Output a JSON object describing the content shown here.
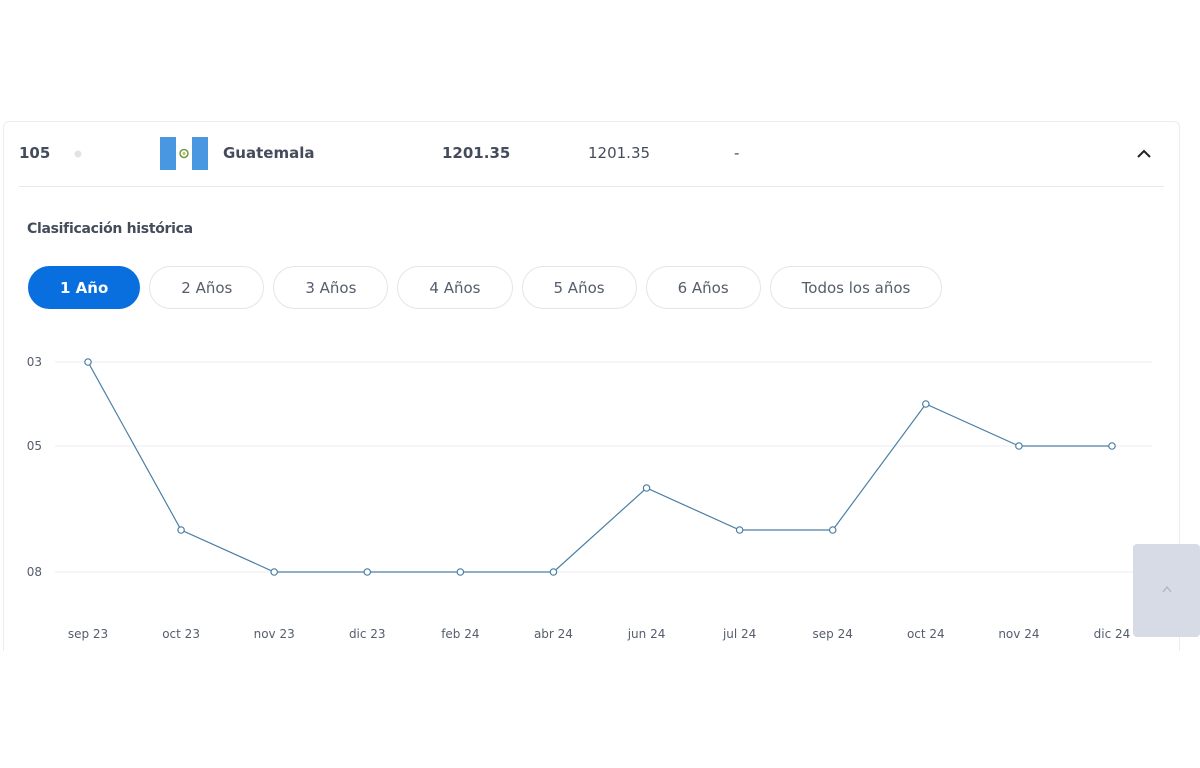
{
  "row": {
    "rank": "105",
    "country": "Guatemala",
    "points": "1201.35",
    "previous_points": "1201.35",
    "change": "-"
  },
  "section_title": "Clasificación histórica",
  "range_buttons": {
    "labels": [
      "1 Año",
      "2 Años",
      "3 Años",
      "4 Años",
      "5 Años",
      "6 Años",
      "Todos los años"
    ],
    "active": 0
  },
  "chart_data": {
    "type": "line",
    "categories": [
      "sep 23",
      "oct 23",
      "nov 23",
      "dic 23",
      "feb 24",
      "abr 24",
      "jun 24",
      "jul 24",
      "sep 24",
      "oct 24",
      "nov 24",
      "dic 24"
    ],
    "values": [
      3,
      7,
      8,
      8,
      8,
      8,
      6,
      7,
      7,
      4,
      5,
      5
    ],
    "color": "#4a7fa5",
    "ylim": [
      8,
      3
    ],
    "yticks": [
      {
        "value": 3,
        "label": "03"
      },
      {
        "value": 5,
        "label": "05"
      },
      {
        "value": 8,
        "label": "08"
      }
    ],
    "grid": true
  }
}
